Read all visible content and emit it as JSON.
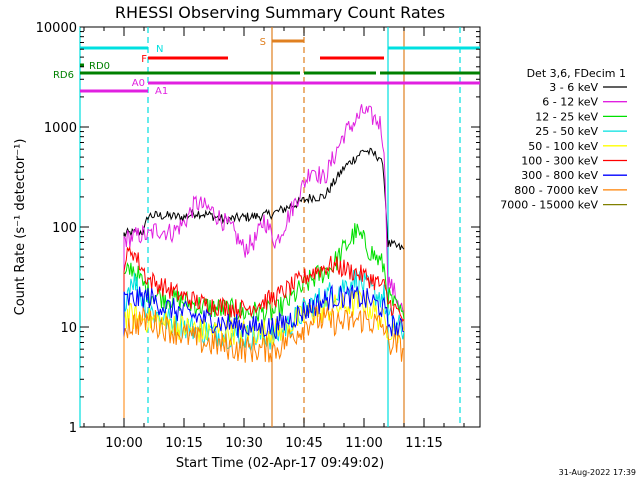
{
  "chart_data": {
    "type": "line",
    "title": "RHESSI Observing Summary Count Rates",
    "xlabel": "Start Time (02-Apr-17 09:49:02)",
    "ylabel": "Count Rate (s⁻¹ detector⁻¹)",
    "yscale": "log",
    "ylim": [
      1,
      10000
    ],
    "xlim": [
      "09:49",
      "11:29"
    ],
    "x_ticks": [
      "10:00",
      "10:15",
      "10:30",
      "10:45",
      "11:00",
      "11:15"
    ],
    "y_ticks": [
      "1",
      "10",
      "100",
      "1000",
      "10000"
    ],
    "legend_title": "Det 3,6, FDecim 1",
    "legend_position": "right",
    "timestamp": "31-Aug-2022 17:39",
    "series": [
      {
        "name": "3 - 6 keV",
        "color": "#000000",
        "x": [
          "10:00",
          "10:05",
          "10:06",
          "10:10",
          "10:15",
          "10:18",
          "10:22",
          "10:25",
          "10:30",
          "10:35",
          "10:38",
          "10:47",
          "10:50",
          "10:55",
          "11:00",
          "11:04",
          "11:05",
          "11:06",
          "11:10"
        ],
        "values": [
          85,
          90,
          130,
          130,
          125,
          140,
          130,
          118,
          125,
          130,
          140,
          200,
          200,
          390,
          590,
          500,
          330,
          68,
          60
        ]
      },
      {
        "name": "6 - 12 keV",
        "color": "#e020e0",
        "x": [
          "10:00",
          "10:05",
          "10:06",
          "10:08",
          "10:12",
          "10:15",
          "10:18",
          "10:22",
          "10:27",
          "10:30",
          "10:33",
          "10:35",
          "10:38",
          "10:47",
          "10:50",
          "10:55",
          "11:00",
          "11:04",
          "11:05",
          "11:06",
          "11:10"
        ],
        "values": [
          75,
          85,
          80,
          95,
          88,
          110,
          175,
          145,
          95,
          60,
          75,
          120,
          70,
          400,
          300,
          850,
          1450,
          1100,
          650,
          30,
          14
        ]
      },
      {
        "name": "12 - 25 keV",
        "color": "#00e000",
        "x": [
          "10:00",
          "10:02",
          "10:06",
          "10:10",
          "10:20",
          "10:30",
          "10:38",
          "10:47",
          "10:52",
          "10:58",
          "11:02",
          "11:05",
          "11:06",
          "11:10"
        ],
        "values": [
          30,
          40,
          22,
          20,
          16,
          14,
          14,
          30,
          40,
          90,
          55,
          40,
          20,
          12
        ]
      },
      {
        "name": "25 - 50 keV",
        "color": "#00e0e0",
        "x": [
          "10:00",
          "10:02",
          "10:06",
          "10:10",
          "10:20",
          "10:30",
          "10:38",
          "10:47",
          "10:52",
          "10:58",
          "11:02",
          "11:05",
          "11:06",
          "11:10"
        ],
        "values": [
          18,
          32,
          15,
          12,
          9,
          8,
          8,
          17,
          22,
          30,
          22,
          20,
          12,
          9
        ]
      },
      {
        "name": "50 - 100 keV",
        "color": "#ffff00",
        "x": [
          "10:00",
          "10:06",
          "10:20",
          "10:38",
          "10:47",
          "11:00",
          "11:06",
          "11:10"
        ],
        "values": [
          13,
          12,
          9,
          9,
          14,
          18,
          10,
          9
        ]
      },
      {
        "name": "100 - 300 keV",
        "color": "#ff0000",
        "x": [
          "10:00",
          "10:02",
          "10:06",
          "10:10",
          "10:15",
          "10:20",
          "10:25",
          "10:30",
          "10:38",
          "10:47",
          "10:52",
          "10:58",
          "11:02",
          "11:05",
          "11:06",
          "11:10"
        ],
        "values": [
          45,
          60,
          30,
          25,
          20,
          17,
          16,
          15,
          20,
          35,
          42,
          35,
          30,
          25,
          18,
          12
        ]
      },
      {
        "name": "300 - 800 keV",
        "color": "#0000ff",
        "x": [
          "10:00",
          "10:06",
          "10:10",
          "10:20",
          "10:30",
          "10:38",
          "10:47",
          "10:52",
          "10:58",
          "11:02",
          "11:05",
          "11:06",
          "11:10"
        ],
        "values": [
          18,
          20,
          16,
          12,
          10,
          10,
          16,
          20,
          20,
          18,
          15,
          11,
          9
        ]
      },
      {
        "name": "800 - 7000 keV",
        "color": "#ff8000",
        "x": [
          "10:00",
          "10:06",
          "10:10",
          "10:20",
          "10:30",
          "10:38",
          "10:47",
          "10:55",
          "11:00",
          "11:05",
          "11:06",
          "11:10"
        ],
        "values": [
          10,
          12,
          10,
          7,
          6,
          6,
          12,
          11,
          12,
          10,
          7,
          6
        ]
      },
      {
        "name": "7000 - 15000 keV",
        "color": "#808000",
        "x": [],
        "values": []
      }
    ],
    "flag_labels": [
      {
        "label": "N",
        "color": "#00e0e0",
        "spans": [
          [
            "09:49",
            "10:06"
          ],
          [
            "11:06",
            "11:29"
          ]
        ]
      },
      {
        "label": "F",
        "color": "#ff0000",
        "spans": [
          [
            "10:06",
            "10:26"
          ],
          [
            "10:49",
            "11:05"
          ]
        ]
      },
      {
        "label": "S",
        "color": "#e08020",
        "spans": [
          [
            "10:37",
            "10:45"
          ]
        ]
      },
      {
        "label": "RD0",
        "color": "#008000",
        "spans": [
          [
            "09:49",
            "09:50"
          ]
        ]
      },
      {
        "label": "RD6",
        "color": "#008000",
        "spans": [
          [
            "09:49",
            "10:14"
          ],
          [
            "10:14",
            "10:44"
          ],
          [
            "10:45",
            "11:03"
          ],
          [
            "11:04",
            "11:29"
          ]
        ]
      },
      {
        "label": "A0",
        "color": "#e020e0",
        "spans": [
          [
            "10:06",
            "11:29"
          ]
        ]
      },
      {
        "label": "A1",
        "color": "#e020e0",
        "spans": [
          [
            "09:49",
            "10:06"
          ]
        ]
      }
    ],
    "vertical_markers": [
      {
        "time": "09:49",
        "color": "#00e0e0",
        "style": "solid"
      },
      {
        "time": "10:06",
        "color": "#00e0e0",
        "style": "dashed"
      },
      {
        "time": "10:37",
        "color": "#e08020",
        "style": "solid"
      },
      {
        "time": "10:45",
        "color": "#e08020",
        "style": "dashed"
      },
      {
        "time": "11:06",
        "color": "#00e0e0",
        "style": "solid"
      },
      {
        "time": "11:10",
        "color": "#e08020",
        "style": "solid"
      },
      {
        "time": "11:24",
        "color": "#00e0e0",
        "style": "dashed"
      }
    ]
  }
}
